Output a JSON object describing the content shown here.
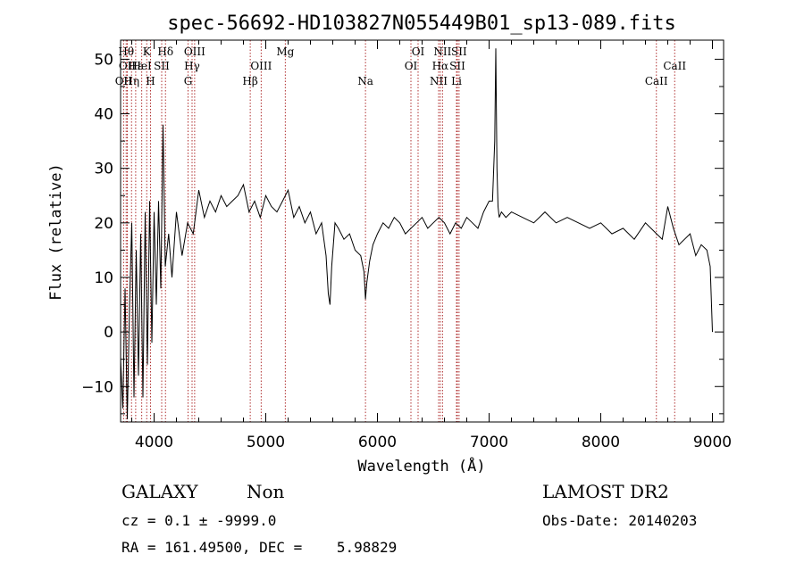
{
  "chart_data": {
    "type": "line",
    "title": "spec-56692-HD103827N055449B01_sp13-089.fits",
    "xlabel": "Wavelength (Å)",
    "ylabel": "Flux (relative)",
    "xlim": [
      3700,
      9100
    ],
    "ylim": [
      -16.5,
      53.5
    ],
    "x_ticks": [
      4000,
      5000,
      6000,
      7000,
      8000,
      9000
    ],
    "y_ticks": [
      -10,
      0,
      10,
      20,
      30,
      40,
      50
    ],
    "series": [
      {
        "x": [
          3700,
          3720,
          3740,
          3760,
          3780,
          3800,
          3820,
          3840,
          3860,
          3880,
          3900,
          3920,
          3940,
          3960,
          3980,
          4000,
          4020,
          4040,
          4060,
          4080,
          4100,
          4130,
          4160,
          4200,
          4250,
          4300,
          4350,
          4400,
          4450,
          4500,
          4550,
          4600,
          4650,
          4700,
          4750,
          4800,
          4850,
          4900,
          4950,
          5000,
          5050,
          5100,
          5150,
          5200,
          5250,
          5300,
          5350,
          5400,
          5450,
          5500,
          5540,
          5560,
          5575,
          5590,
          5620,
          5650,
          5700,
          5750,
          5800,
          5850,
          5880,
          5893,
          5905,
          5930,
          5960,
          6000,
          6050,
          6100,
          6150,
          6200,
          6250,
          6300,
          6350,
          6400,
          6450,
          6500,
          6550,
          6600,
          6650,
          6700,
          6750,
          6800,
          6850,
          6900,
          6950,
          7000,
          7030,
          7050,
          7060,
          7070,
          7080,
          7090,
          7110,
          7150,
          7200,
          7300,
          7400,
          7500,
          7600,
          7700,
          7800,
          7900,
          8000,
          8100,
          8200,
          8300,
          8400,
          8500,
          8550,
          8600,
          8650,
          8700,
          8750,
          8800,
          8850,
          8900,
          8950,
          8980,
          9000
        ],
        "y": [
          -5,
          -14,
          8,
          -16,
          5,
          20,
          -12,
          15,
          -8,
          18,
          -12,
          22,
          -6,
          24,
          -2,
          22,
          5,
          24,
          8,
          38,
          12,
          18,
          10,
          22,
          14,
          20,
          18,
          26,
          21,
          24,
          22,
          25,
          23,
          24,
          25,
          27,
          22,
          24,
          21,
          25,
          23,
          22,
          24,
          26,
          21,
          23,
          20,
          22,
          18,
          20,
          14,
          7,
          5,
          12,
          20,
          19,
          17,
          18,
          15,
          14,
          11,
          6,
          9,
          13,
          16,
          18,
          20,
          19,
          21,
          20,
          18,
          19,
          20,
          21,
          19,
          20,
          21,
          20,
          18,
          20,
          19,
          21,
          20,
          19,
          22,
          24,
          24,
          35,
          52,
          30,
          23,
          21,
          22,
          21,
          22,
          21,
          20,
          22,
          20,
          21,
          20,
          19,
          20,
          18,
          19,
          17,
          20,
          18,
          17,
          23,
          19,
          16,
          17,
          18,
          14,
          16,
          15,
          12,
          0
        ]
      }
    ],
    "line_markers": [
      {
        "x": 3727,
        "label": "OII",
        "row": 2
      },
      {
        "x": 3750,
        "label": "Hθ",
        "row": 0
      },
      {
        "x": 3760,
        "label": "OII",
        "row": 1
      },
      {
        "x": 3798,
        "label": "Hη",
        "row": 2
      },
      {
        "x": 3835,
        "label": "Hε",
        "row": 1
      },
      {
        "x": 3889,
        "label": "HeI",
        "row": 1
      },
      {
        "x": 3934,
        "label": "K",
        "row": 0
      },
      {
        "x": 3968,
        "label": "H",
        "row": 2
      },
      {
        "x": 4068,
        "label": "SII",
        "row": 1
      },
      {
        "x": 4102,
        "label": "Hδ",
        "row": 0
      },
      {
        "x": 4304,
        "label": "G",
        "row": 2
      },
      {
        "x": 4340,
        "label": "Hγ",
        "row": 1
      },
      {
        "x": 4363,
        "label": "OIII",
        "row": 0
      },
      {
        "x": 4861,
        "label": "Hβ",
        "row": 2
      },
      {
        "x": 4959,
        "label": "OIII",
        "row": 1
      },
      {
        "x": 5175,
        "label": "Mg",
        "row": 0
      },
      {
        "x": 5893,
        "label": "Na",
        "row": 2
      },
      {
        "x": 6300,
        "label": "OI",
        "row": 1
      },
      {
        "x": 6364,
        "label": "OI",
        "row": 0
      },
      {
        "x": 6548,
        "label": "NII",
        "row": 2
      },
      {
        "x": 6563,
        "label": "Hα",
        "row": 1
      },
      {
        "x": 6583,
        "label": "NII",
        "row": 0
      },
      {
        "x": 6708,
        "label": "Li",
        "row": 2
      },
      {
        "x": 6716,
        "label": "SII",
        "row": 1
      },
      {
        "x": 6731,
        "label": "SII",
        "row": 0
      },
      {
        "x": 8498,
        "label": "CaII",
        "row": 2
      },
      {
        "x": 8662,
        "label": "CaII",
        "row": 1
      }
    ],
    "colors": {
      "spectrum": "#000000",
      "markers": "#b03030"
    }
  },
  "info": {
    "object_class": "GALAXY",
    "subclass": "Non",
    "survey": "LAMOST DR2",
    "redshift": "cz = 0.1 ± -9999.0",
    "obs_date": "Obs-Date: 20140203",
    "coords": "RA = 161.49500, DEC =    5.98829"
  }
}
